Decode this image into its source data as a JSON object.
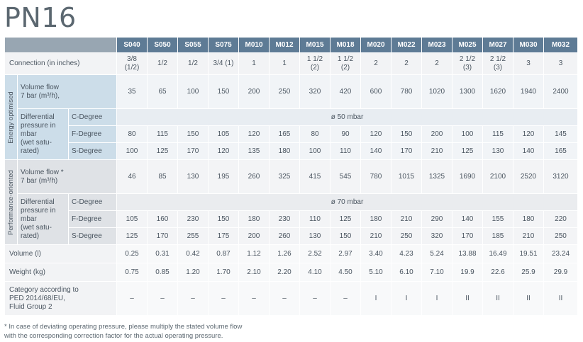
{
  "title": "PN16",
  "models": [
    "S040",
    "S050",
    "S055",
    "S075",
    "M010",
    "M012",
    "M015",
    "M018",
    "M020",
    "M022",
    "M023",
    "M025",
    "M027",
    "M030",
    "M032"
  ],
  "connection": {
    "label": "Connection (in inches)",
    "values": [
      [
        "3/8",
        "(1/2)"
      ],
      [
        "1/2",
        ""
      ],
      [
        "1/2",
        ""
      ],
      [
        "3/4 (1)",
        ""
      ],
      [
        "1",
        ""
      ],
      [
        "1",
        ""
      ],
      [
        "1 1/2",
        "(2)"
      ],
      [
        "1 1/2",
        "(2)"
      ],
      [
        "2",
        ""
      ],
      [
        "2",
        ""
      ],
      [
        "2",
        ""
      ],
      [
        "2 1/2",
        "(3)"
      ],
      [
        "2 1/2",
        "(3)"
      ],
      [
        "3",
        ""
      ],
      [
        "3",
        ""
      ]
    ]
  },
  "energy": {
    "side_label": "Energy optimised",
    "volume_flow_label": [
      "Volume flow",
      "7 bar (m³/h),"
    ],
    "volume_flow": [
      "35",
      "65",
      "100",
      "150",
      "200",
      "250",
      "320",
      "420",
      "600",
      "780",
      "1020",
      "1300",
      "1620",
      "1940",
      "2400"
    ],
    "dp_label": [
      "Differential",
      "pressure in",
      "mbar",
      "(wet satu-",
      "rated)"
    ],
    "c_degree_label": "C-Degree",
    "c_degree": "ø 50 mbar",
    "f_degree_label": "F-Degree",
    "f_degree": [
      "80",
      "115",
      "150",
      "105",
      "120",
      "165",
      "80",
      "90",
      "120",
      "150",
      "200",
      "100",
      "115",
      "120",
      "145"
    ],
    "s_degree_label": "S-Degree",
    "s_degree": [
      "100",
      "125",
      "170",
      "120",
      "135",
      "180",
      "100",
      "110",
      "140",
      "170",
      "210",
      "125",
      "130",
      "140",
      "165"
    ]
  },
  "performance": {
    "side_label": "Performance-oriented",
    "volume_flow_label": [
      "Volume flow *",
      "7 bar (m³/h)"
    ],
    "volume_flow": [
      "46",
      "85",
      "130",
      "195",
      "260",
      "325",
      "415",
      "545",
      "780",
      "1015",
      "1325",
      "1690",
      "2100",
      "2520",
      "3120"
    ],
    "dp_label": [
      "Differential",
      "pressure in",
      "mbar",
      "(wet satu-",
      "rated)"
    ],
    "c_degree_label": "C-Degree",
    "c_degree": "ø 70 mbar",
    "f_degree_label": "F-Degree",
    "f_degree": [
      "105",
      "160",
      "230",
      "150",
      "180",
      "230",
      "110",
      "125",
      "180",
      "210",
      "290",
      "140",
      "155",
      "180",
      "220"
    ],
    "s_degree_label": "S-Degree",
    "s_degree": [
      "125",
      "170",
      "255",
      "175",
      "200",
      "260",
      "130",
      "150",
      "210",
      "250",
      "320",
      "170",
      "185",
      "210",
      "250"
    ]
  },
  "volume": {
    "label": "Volume (l)",
    "values": [
      "0.25",
      "0.31",
      "0.42",
      "0.87",
      "1.12",
      "1.26",
      "2.52",
      "2.97",
      "3.40",
      "4.23",
      "5.24",
      "13.88",
      "16.49",
      "19.51",
      "23.24"
    ]
  },
  "weight": {
    "label": "Weight (kg)",
    "values": [
      "0.75",
      "0.85",
      "1.20",
      "1.70",
      "2.10",
      "2.20",
      "4.10",
      "4.50",
      "5.10",
      "6.10",
      "7.10",
      "19.9",
      "22.6",
      "25.9",
      "29.9"
    ]
  },
  "category": {
    "label": [
      "Category according to",
      "PED 2014/68/EU,",
      "Fluid Group 2"
    ],
    "values": [
      "–",
      "–",
      "–",
      "–",
      "–",
      "–",
      "–",
      "–",
      "I",
      "I",
      "I",
      "II",
      "II",
      "II",
      "II"
    ]
  },
  "footnote": [
    "* In case of deviating operating pressure, please multiply the stated volume flow",
    "with the corresponding correction factor for the actual operating pressure."
  ]
}
